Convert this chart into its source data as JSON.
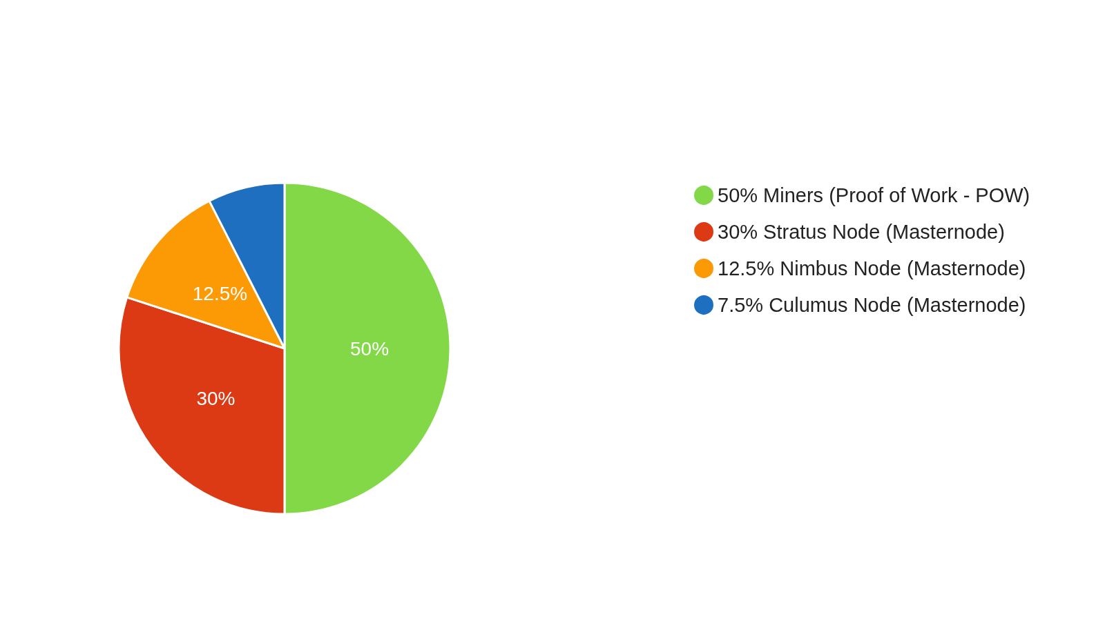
{
  "chart_data": {
    "type": "pie",
    "categories": [
      "50% Miners (Proof of Work - POW)",
      "30% Stratus Node (Masternode)",
      "12.5% Nimbus Node (Masternode)",
      "7.5% Culumus Node (Masternode)"
    ],
    "values": [
      50,
      30,
      12.5,
      7.5
    ],
    "colors": [
      "#82d846",
      "#db3a15",
      "#fc9a05",
      "#1f6fc0"
    ],
    "value_labels": [
      "50%",
      "30%",
      "12.5%",
      null
    ],
    "legend": "right"
  }
}
